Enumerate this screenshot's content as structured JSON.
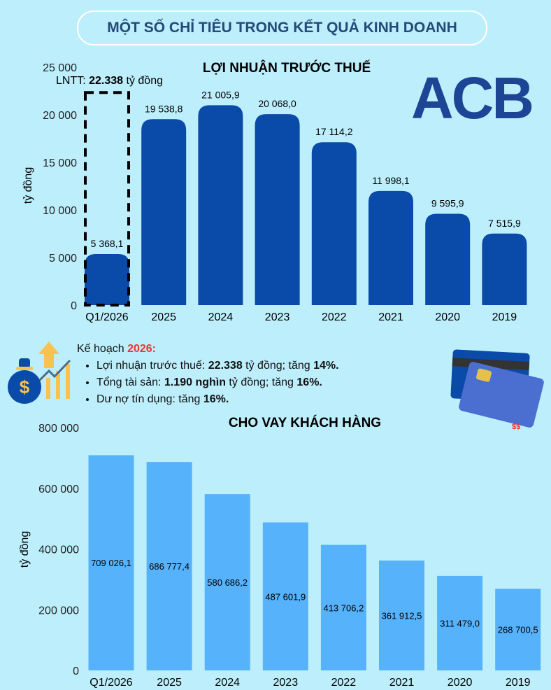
{
  "header": {
    "title": "MỘT SỐ CHỈ TIÊU TRONG KẾT QUẢ KINH DOANH"
  },
  "logo": {
    "text": "ACB",
    "color": "#1c4596"
  },
  "plan": {
    "heading": "Kế hoạch ",
    "year": "2026:",
    "items": [
      {
        "pre": "Lợi nhuận trước thuế: ",
        "b1": "22.338",
        "mid": " tỷ đồng; tăng ",
        "b2": "14%."
      },
      {
        "pre": "Tổng tài sản: ",
        "b1": "1.190 nghìn",
        "mid": " tỷ đồng; tăng ",
        "b2": "16%."
      },
      {
        "pre": "Dư nợ tín dụng: tăng ",
        "b1": "16%.",
        "mid": "",
        "b2": ""
      }
    ]
  },
  "chart_data": [
    {
      "type": "bar",
      "title": "LỢI NHUẬN TRƯỚC THUẾ",
      "ylabel": "tỷ đồng",
      "xlabel": "",
      "ylim": [
        0,
        25000
      ],
      "yticks": [
        "0",
        "5 000",
        "10 000",
        "15 000",
        "20 000",
        "25 000"
      ],
      "ytick_values": [
        0,
        5000,
        10000,
        15000,
        20000,
        25000
      ],
      "categories": [
        "Q1/2026",
        "2025",
        "2024",
        "2023",
        "2022",
        "2021",
        "2020",
        "2019"
      ],
      "values": [
        5368.1,
        19538.8,
        21005.9,
        20068.0,
        17114.2,
        11998.1,
        9595.9,
        7515.9
      ],
      "labels": [
        "5 368,1",
        "19 538,8",
        "21 005,9",
        "20 068,0",
        "17 114,2",
        "11 998,1",
        "9 595,9",
        "7 515,9"
      ],
      "color": "#0a4aa8",
      "annotation": {
        "prefix": "LNTT: ",
        "value": "22.338",
        "suffix": " tỷ đồng",
        "target": 22338
      }
    },
    {
      "type": "bar",
      "title": "CHO VAY KHÁCH HÀNG",
      "ylabel": "tỷ đồng",
      "xlabel": "",
      "ylim": [
        0,
        800000
      ],
      "yticks": [
        "0",
        "200 000",
        "400 000",
        "600 000",
        "800 000"
      ],
      "ytick_values": [
        0,
        200000,
        400000,
        600000,
        800000
      ],
      "categories": [
        "Q1/2026",
        "2025",
        "2024",
        "2023",
        "2022",
        "2021",
        "2020",
        "2019"
      ],
      "values": [
        709026.1,
        686777.4,
        580686.2,
        487601.9,
        413706.2,
        361912.5,
        311479.0,
        268700.5
      ],
      "labels": [
        "709 026,1",
        "686 777,4",
        "580 686,2",
        "487 601,9",
        "413 706,2",
        "361 912,5",
        "311 479,0",
        "268 700,5"
      ],
      "color": "#57b2fc"
    }
  ]
}
